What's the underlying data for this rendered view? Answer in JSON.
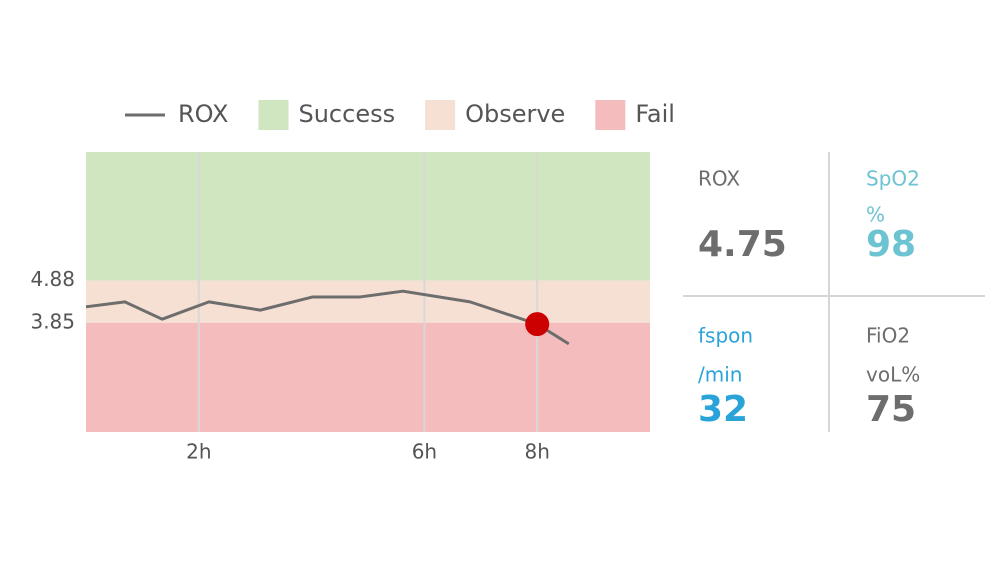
{
  "chart_data": {
    "type": "line",
    "x": [
      0,
      0.69,
      1.35,
      2.18,
      3.09,
      4.02,
      4.86,
      5.62,
      6.81,
      8.0,
      8.56
    ],
    "series": [
      {
        "name": "ROX",
        "color": "#6d6d6d",
        "values": [
          4.24,
          4.36,
          3.94,
          4.36,
          4.16,
          4.48,
          4.48,
          4.62,
          4.36,
          3.82,
          3.34
        ]
      }
    ],
    "bands": [
      {
        "name": "Success",
        "color": "#d0e6c0",
        "range": [
          4.88,
          8.0
        ]
      },
      {
        "name": "Observe",
        "color": "#f6e0d3",
        "range": [
          3.85,
          4.88
        ]
      },
      {
        "name": "Fail",
        "color": "#f4bcbc",
        "range": [
          1.2,
          3.85
        ]
      }
    ],
    "highlight_index": 9,
    "highlight_color": "#cc0000",
    "xlim": [
      0,
      10
    ],
    "ylim": [
      1.2,
      8.0
    ],
    "xticks": [
      {
        "value": 2,
        "label": "2h"
      },
      {
        "value": 6,
        "label": "6h"
      },
      {
        "value": 8,
        "label": "8h"
      }
    ],
    "yticks": [
      3.85,
      4.88
    ],
    "grid": true
  },
  "panel": {
    "cells": [
      {
        "label": "ROX",
        "value": 4.75,
        "color": "#6d6d6d"
      },
      {
        "label": "SpO2",
        "unit": "%",
        "value": 98,
        "color": "#6cc3d1"
      },
      {
        "label": "fspon",
        "unit": "/min",
        "value": 32,
        "color": "#2aa3d8"
      },
      {
        "label": "FiO2",
        "unit": "voL%",
        "value": 75,
        "color": "#6d6d6d"
      }
    ]
  }
}
